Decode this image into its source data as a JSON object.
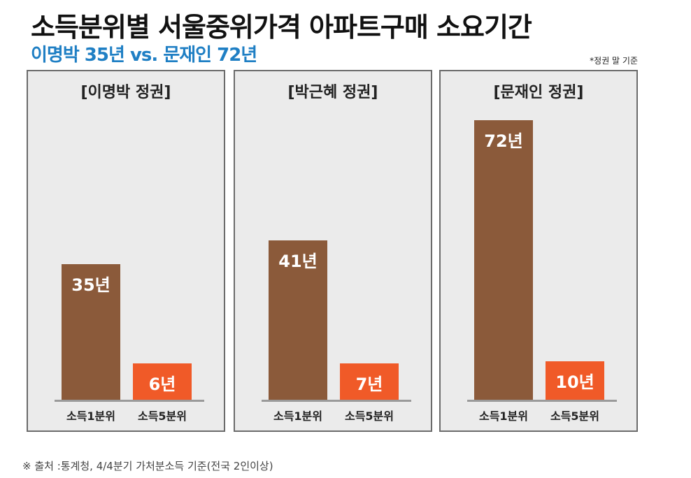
{
  "title": "소득분위별 서울중위가격 아파트구매 소요기간",
  "subtitle": "이명박 35년 vs. 문재인 72년",
  "note": "*정권 말 기준",
  "source": "※ 출처 :통계청, 4/4분기 가처분소득 기준(전국 2인이상)",
  "colors": {
    "q1": "#8b5a3a",
    "q5": "#f05a28",
    "subtitle": "#1f7fc4"
  },
  "chart_data": {
    "type": "bar",
    "unit": "년",
    "categories": [
      "소득1분위",
      "소득5분위"
    ],
    "panels": [
      {
        "title": "[이명박 정권]",
        "values": [
          35,
          6
        ],
        "labels": [
          "35년",
          "6년"
        ]
      },
      {
        "title": "[박근혜 정권]",
        "values": [
          41,
          7
        ],
        "labels": [
          "41년",
          "7년"
        ]
      },
      {
        "title": "[문재인 정권]",
        "values": [
          72,
          10
        ],
        "labels": [
          "72년",
          "10년"
        ]
      }
    ]
  }
}
